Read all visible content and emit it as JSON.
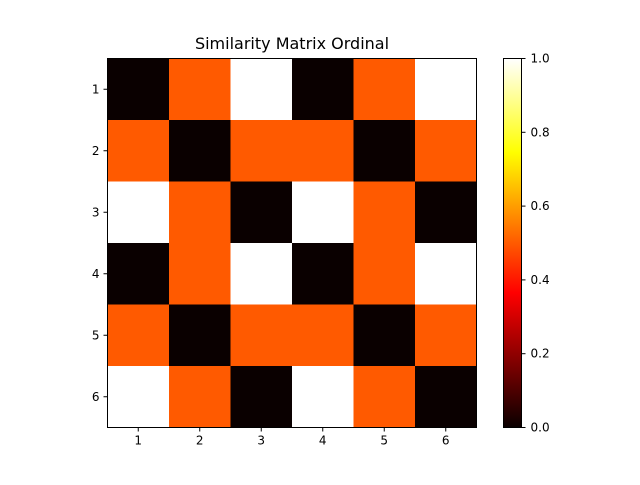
{
  "chart_data": {
    "type": "heatmap",
    "title": "Similarity Matrix Ordinal",
    "xlabel": "",
    "ylabel": "",
    "x_categories": [
      "1",
      "2",
      "3",
      "4",
      "5",
      "6"
    ],
    "y_categories": [
      "1",
      "2",
      "3",
      "4",
      "5",
      "6"
    ],
    "values": [
      [
        0.0,
        0.5,
        1.0,
        0.0,
        0.5,
        1.0
      ],
      [
        0.5,
        0.0,
        0.5,
        0.5,
        0.0,
        0.5
      ],
      [
        1.0,
        0.5,
        0.0,
        1.0,
        0.5,
        0.0
      ],
      [
        0.0,
        0.5,
        1.0,
        0.0,
        0.5,
        1.0
      ],
      [
        0.5,
        0.0,
        0.5,
        0.5,
        0.0,
        0.5
      ],
      [
        1.0,
        0.5,
        0.0,
        1.0,
        0.5,
        0.0
      ]
    ],
    "colormap": "hot",
    "colorbar": {
      "range": [
        0.0,
        1.0
      ],
      "ticks": [
        "0.0",
        "0.2",
        "0.4",
        "0.6",
        "0.8",
        "1.0"
      ]
    },
    "grid": false
  }
}
